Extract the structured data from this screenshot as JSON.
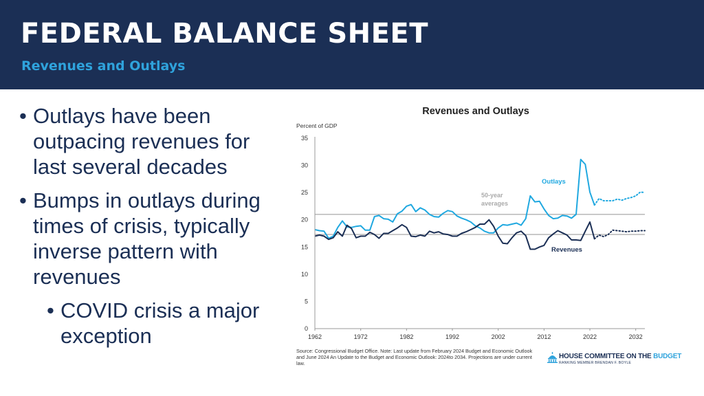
{
  "header": {
    "title": "FEDERAL BALANCE SHEET",
    "subtitle": "Revenues and Outlays"
  },
  "bullets": [
    "Outlays have been outpacing revenues for last several decades",
    "Bumps in outlays during times of crisis, typically inverse pattern with revenues"
  ],
  "sub_bullets": [
    "COVID crisis a major exception"
  ],
  "bullet_glyph": "•",
  "source_note": "Source: Congressional Budget Office. Note: Last update from February 2024 Budget and Economic Outlook and June 2024 An Update to the Budget and Economic Outlook: 2024to 2034. Projections are under current law.",
  "logo": {
    "line1_prefix": "HOUSE COMMITTEE ON THE ",
    "line1_accent": "BUDGET",
    "line2": "RANKING MEMBER BRENDAN F. BOYLE",
    "icon": "capitol-dome-icon"
  },
  "colors": {
    "header_bg": "#1b2f55",
    "subtitle": "#2fa3dc",
    "outlays": "#1fa8e0",
    "revenues": "#1b2f55",
    "avg_lines": "#b0b0b0",
    "text": "#1b2f55"
  },
  "chart_data": {
    "type": "line",
    "title": "Revenues and Outlays",
    "ylabel": "Percent of GDP",
    "xlabel": "",
    "ylim": [
      0,
      35
    ],
    "xlim": [
      1962,
      2034
    ],
    "yticks": [
      0,
      5,
      10,
      15,
      20,
      25,
      30,
      35
    ],
    "xticks": [
      1962,
      1972,
      1982,
      1992,
      2002,
      2012,
      2022,
      2032
    ],
    "grid": false,
    "annotations": {
      "outlays_label": "Outlays",
      "revenues_label": "Revenues",
      "avg_label_line1": "50-year",
      "avg_label_line2": "averages"
    },
    "averages": {
      "outlays": 21.0,
      "revenues": 17.3
    },
    "series": [
      {
        "name": "Outlays",
        "style": "actual",
        "x": [
          1962,
          1963,
          1964,
          1965,
          1966,
          1967,
          1968,
          1969,
          1970,
          1971,
          1972,
          1973,
          1974,
          1975,
          1976,
          1977,
          1978,
          1979,
          1980,
          1981,
          1982,
          1983,
          1984,
          1985,
          1986,
          1987,
          1988,
          1989,
          1990,
          1991,
          1992,
          1993,
          1994,
          1995,
          1996,
          1997,
          1998,
          1999,
          2000,
          2001,
          2002,
          2003,
          2004,
          2005,
          2006,
          2007,
          2008,
          2009,
          2010,
          2011,
          2012,
          2013,
          2014,
          2015,
          2016,
          2017,
          2018,
          2019,
          2020,
          2021,
          2022,
          2023
        ],
        "values": [
          18.2,
          18.0,
          17.9,
          16.6,
          17.0,
          18.6,
          19.8,
          18.7,
          18.6,
          18.8,
          18.9,
          18.1,
          18.1,
          20.6,
          20.8,
          20.2,
          20.1,
          19.6,
          21.1,
          21.6,
          22.5,
          22.8,
          21.5,
          22.2,
          21.8,
          21.0,
          20.6,
          20.5,
          21.2,
          21.7,
          21.5,
          20.7,
          20.3,
          20.0,
          19.6,
          18.9,
          18.5,
          17.9,
          17.6,
          17.6,
          18.5,
          19.1,
          19.0,
          19.2,
          19.4,
          19.0,
          20.2,
          24.4,
          23.3,
          23.4,
          22.0,
          20.8,
          20.2,
          20.3,
          20.8,
          20.7,
          20.3,
          21.0,
          31.1,
          30.2,
          25.1,
          22.7
        ]
      },
      {
        "name": "Outlays",
        "style": "projection",
        "x": [
          2023,
          2024,
          2025,
          2026,
          2027,
          2028,
          2029,
          2030,
          2031,
          2032,
          2033,
          2034
        ],
        "values": [
          22.7,
          23.9,
          23.5,
          23.5,
          23.5,
          23.8,
          23.6,
          23.9,
          24.1,
          24.4,
          25.1,
          25.0
        ]
      },
      {
        "name": "Revenues",
        "style": "actual",
        "x": [
          1962,
          1963,
          1964,
          1965,
          1966,
          1967,
          1968,
          1969,
          1970,
          1971,
          1972,
          1973,
          1974,
          1975,
          1976,
          1977,
          1978,
          1979,
          1980,
          1981,
          1982,
          1983,
          1984,
          1985,
          1986,
          1987,
          1988,
          1989,
          1990,
          1991,
          1992,
          1993,
          1994,
          1995,
          1996,
          1997,
          1998,
          1999,
          2000,
          2001,
          2002,
          2003,
          2004,
          2005,
          2006,
          2007,
          2008,
          2009,
          2010,
          2011,
          2012,
          2013,
          2014,
          2015,
          2016,
          2017,
          2018,
          2019,
          2020,
          2021,
          2022,
          2023
        ],
        "values": [
          17.0,
          17.2,
          17.0,
          16.4,
          16.7,
          17.8,
          17.0,
          19.0,
          18.4,
          16.7,
          17.0,
          17.0,
          17.7,
          17.3,
          16.6,
          17.5,
          17.5,
          18.0,
          18.5,
          19.1,
          18.6,
          17.0,
          16.9,
          17.2,
          17.0,
          17.9,
          17.6,
          17.8,
          17.4,
          17.3,
          17.0,
          17.0,
          17.5,
          17.8,
          18.2,
          18.6,
          19.2,
          19.2,
          20.0,
          18.8,
          17.0,
          15.7,
          15.6,
          16.7,
          17.6,
          17.9,
          17.1,
          14.6,
          14.6,
          15.0,
          15.3,
          16.7,
          17.4,
          18.0,
          17.6,
          17.2,
          16.3,
          16.3,
          16.2,
          17.9,
          19.6,
          16.5
        ]
      },
      {
        "name": "Revenues",
        "style": "projection",
        "x": [
          2023,
          2024,
          2025,
          2026,
          2027,
          2028,
          2029,
          2030,
          2031,
          2032,
          2033,
          2034
        ],
        "values": [
          16.5,
          17.2,
          16.9,
          17.3,
          18.1,
          18.0,
          17.9,
          17.8,
          17.9,
          17.9,
          18.0,
          18.0
        ]
      }
    ]
  }
}
